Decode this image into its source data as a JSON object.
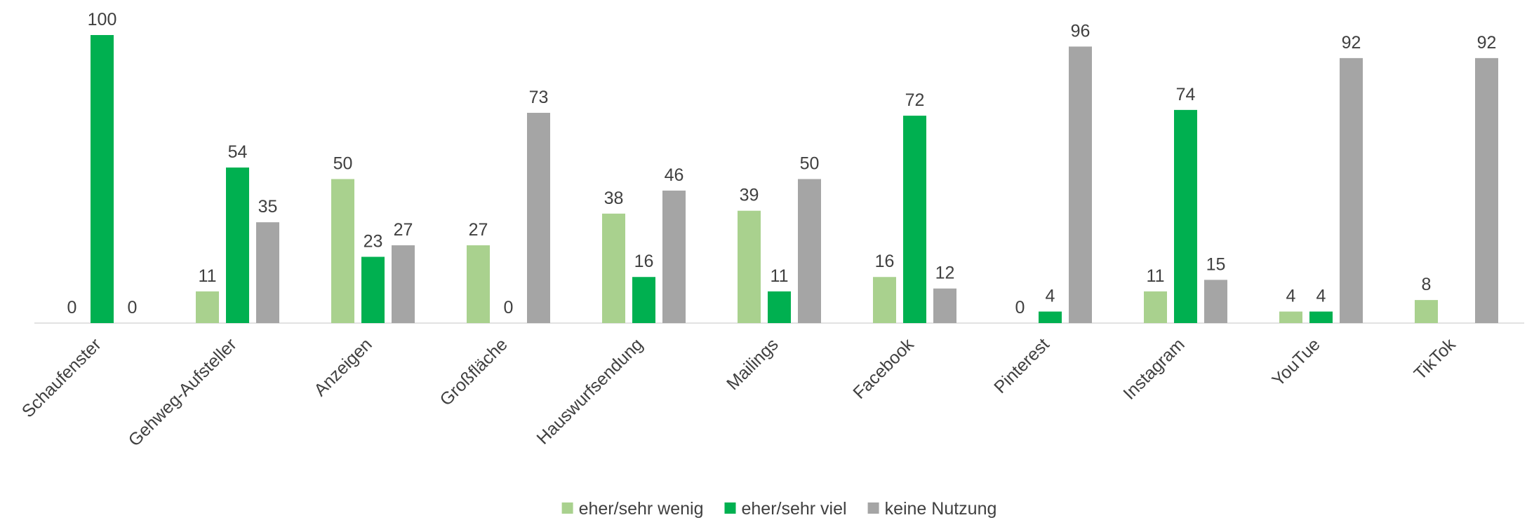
{
  "chart_data": {
    "type": "bar",
    "categories": [
      "Schaufenster",
      "Gehweg-Aufsteller",
      "Anzeigen",
      "Großfläche",
      "Hauswurfsendung",
      "Mailings",
      "Facebook",
      "Pinterest",
      "Instagram",
      "YouTue",
      "TikTok"
    ],
    "series": [
      {
        "name": "eher/sehr wenig",
        "color": "#a9d18e",
        "values": [
          0,
          11,
          50,
          27,
          38,
          39,
          16,
          0,
          11,
          4,
          8
        ]
      },
      {
        "name": "eher/sehr viel",
        "color": "#00b050",
        "values": [
          100,
          54,
          23,
          0,
          16,
          11,
          72,
          4,
          74,
          4,
          null
        ]
      },
      {
        "name": "keine Nutzung",
        "color": "#a5a5a5",
        "values": [
          0,
          35,
          27,
          73,
          46,
          50,
          12,
          96,
          15,
          92,
          92
        ]
      }
    ],
    "legend": "bottom"
  }
}
